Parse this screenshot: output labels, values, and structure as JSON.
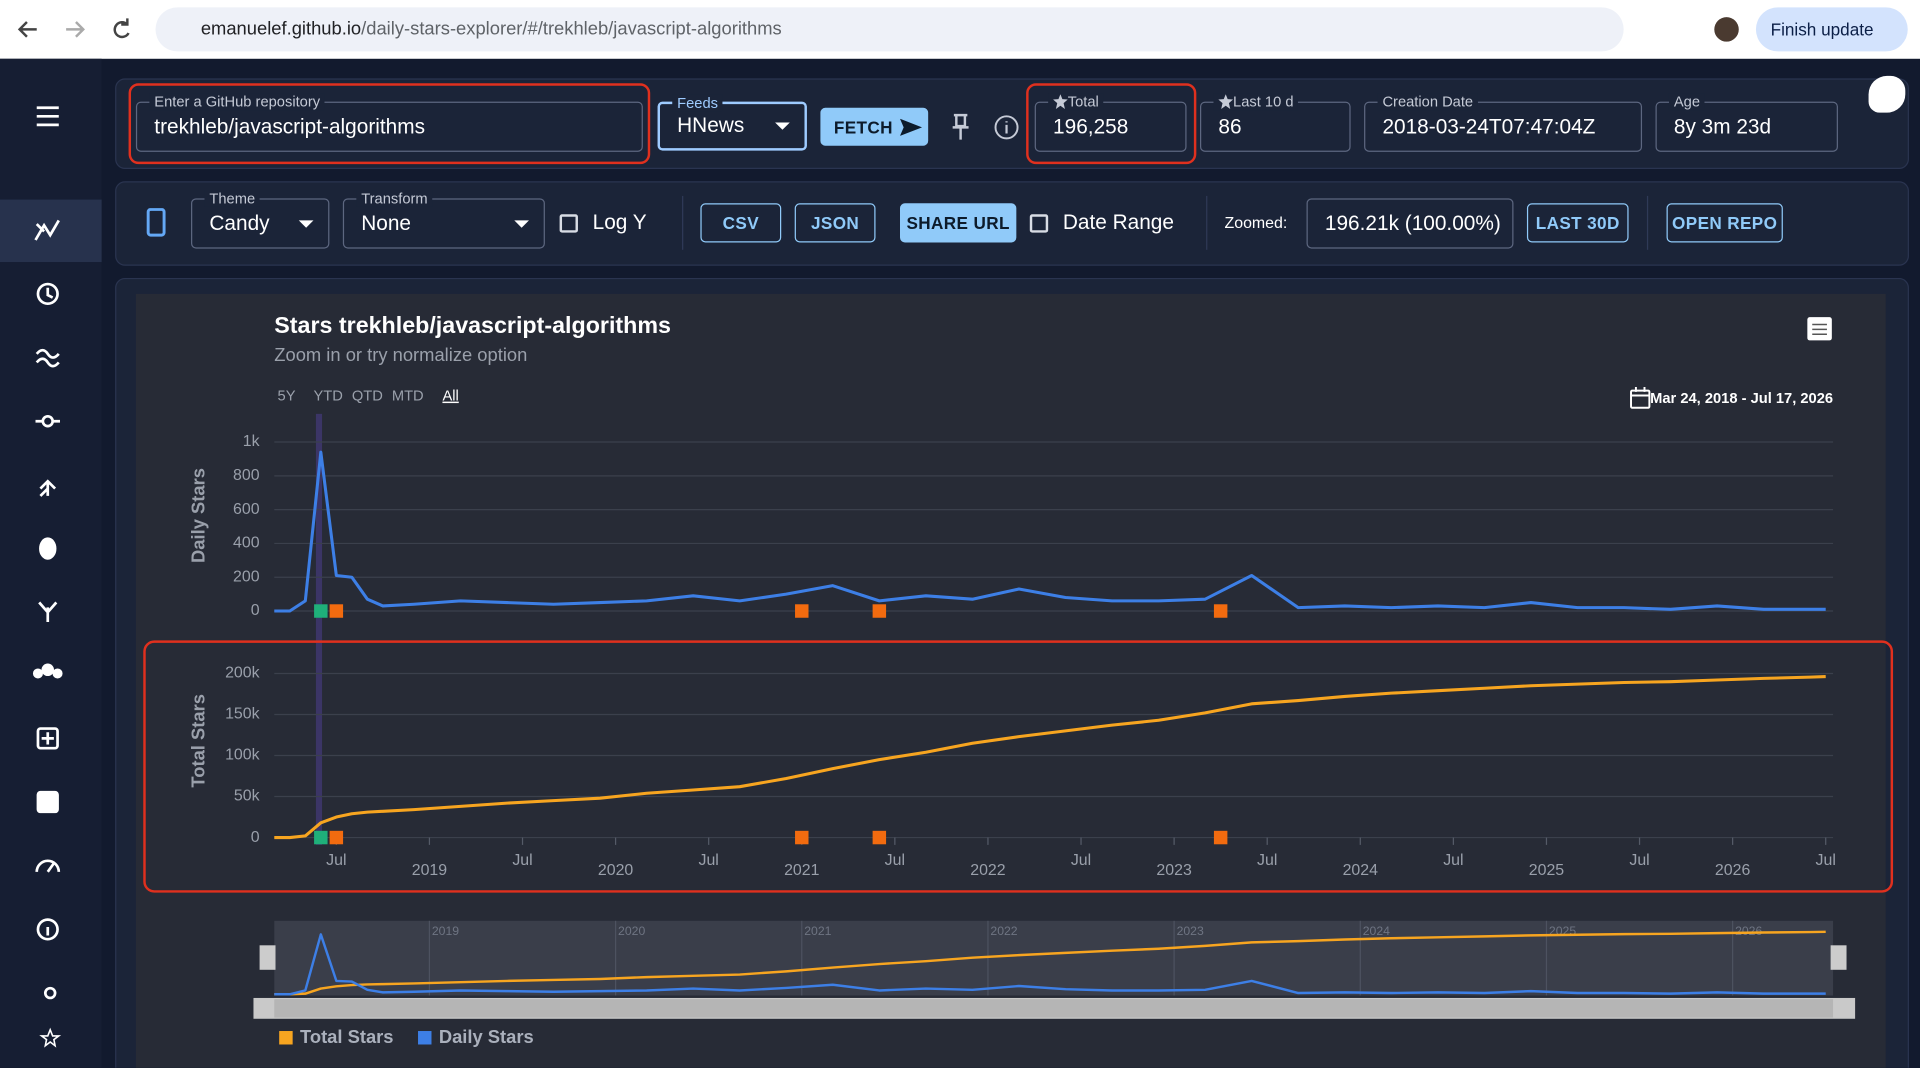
{
  "browser": {
    "url_host": "emanuelef.github.io",
    "url_path": "/daily-stars-explorer/#/trekhleb/javascript-algorithms",
    "update_button": "Finish update"
  },
  "toolbar": {
    "repo": {
      "label": "Enter a GitHub repository",
      "value": "trekhleb/javascript-algorithms"
    },
    "feeds": {
      "label": "Feeds",
      "value": "HNews"
    },
    "fetch": "FETCH",
    "total": {
      "label": "Total",
      "value": "196,258"
    },
    "last_10d": {
      "label": "Last 10 d",
      "value": "86"
    },
    "creation_date": {
      "label": "Creation Date",
      "value": "2018-03-24T07:47:04Z"
    },
    "age": {
      "label": "Age",
      "value": "8y 3m 23d"
    }
  },
  "controls": {
    "theme": {
      "label": "Theme",
      "value": "Candy"
    },
    "transform": {
      "label": "Transform",
      "value": "None"
    },
    "log_y": "Log Y",
    "csv": "CSV",
    "json": "JSON",
    "share_url": "SHARE URL",
    "date_range": "Date Range",
    "zoomed": {
      "label": "Zoomed:",
      "value": "196.21k (100.00%)"
    },
    "last_30d": "LAST 30D",
    "open_repo": "OPEN REPO"
  },
  "chart_data": {
    "type": "line",
    "title": "Stars trekhleb/javascript-algorithms",
    "subtitle": "Zoom in or try normalize option",
    "range_buttons": [
      "5Y",
      "YTD",
      "QTD",
      "MTD",
      "All"
    ],
    "date_range": "Mar 24, 2018 - Jul 17, 2026",
    "x": [
      "2018-03",
      "2018-04",
      "2018-05",
      "2018-06",
      "2018-07",
      "2018-08",
      "2018-09",
      "2018-10",
      "2018-12",
      "2019-03",
      "2019-06",
      "2019-09",
      "2019-12",
      "2020-03",
      "2020-06",
      "2020-09",
      "2020-12",
      "2021-03",
      "2021-06",
      "2021-09",
      "2021-12",
      "2022-03",
      "2022-06",
      "2022-09",
      "2022-12",
      "2023-03",
      "2023-06",
      "2023-09",
      "2023-12",
      "2024-03",
      "2024-06",
      "2024-09",
      "2024-12",
      "2025-03",
      "2025-06",
      "2025-09",
      "2025-12",
      "2026-03",
      "2026-06",
      "2026-07"
    ],
    "xlim": [
      "2018-03",
      "2026-07"
    ],
    "xticks": [
      {
        "value": "2018-07",
        "label": "Jul"
      },
      {
        "value": "2019-01",
        "label": "2019"
      },
      {
        "value": "2019-07",
        "label": "Jul"
      },
      {
        "value": "2020-01",
        "label": "2020"
      },
      {
        "value": "2020-07",
        "label": "Jul"
      },
      {
        "value": "2021-01",
        "label": "2021"
      },
      {
        "value": "2021-07",
        "label": "Jul"
      },
      {
        "value": "2022-01",
        "label": "2022"
      },
      {
        "value": "2022-07",
        "label": "Jul"
      },
      {
        "value": "2023-01",
        "label": "2023"
      },
      {
        "value": "2023-07",
        "label": "Jul"
      },
      {
        "value": "2024-01",
        "label": "2024"
      },
      {
        "value": "2024-07",
        "label": "Jul"
      },
      {
        "value": "2025-01",
        "label": "2025"
      },
      {
        "value": "2025-07",
        "label": "Jul"
      },
      {
        "value": "2026-01",
        "label": "2026"
      },
      {
        "value": "2026-07",
        "label": "Jul"
      }
    ],
    "y_label": "Daily Stars",
    "ylim": [
      0,
      1000
    ],
    "yticks": [
      0,
      200,
      400,
      600,
      800,
      {
        "value": 1000,
        "label": "1k"
      }
    ],
    "y2_label": "Total Stars",
    "y2lim": [
      0,
      200000
    ],
    "y2ticks": [
      0,
      {
        "value": 50000,
        "label": "50k"
      },
      {
        "value": 100000,
        "label": "100k"
      },
      {
        "value": 150000,
        "label": "150k"
      },
      {
        "value": 200000,
        "label": "200k"
      }
    ],
    "grid": true,
    "series": [
      {
        "name": "Total Stars",
        "color": "#f7a520",
        "axis": "y2",
        "values": [
          0,
          0,
          2000,
          18000,
          25000,
          29000,
          31000,
          32000,
          34000,
          38000,
          42000,
          45000,
          48000,
          54000,
          58000,
          62000,
          72000,
          84000,
          95000,
          104000,
          115000,
          123000,
          130000,
          137000,
          143000,
          152000,
          163000,
          167000,
          172000,
          176000,
          179000,
          182000,
          185000,
          187000,
          189000,
          190000,
          192000,
          194000,
          195500,
          196258
        ]
      },
      {
        "name": "Daily Stars",
        "color": "#3d7fe6",
        "values": [
          0,
          0,
          60,
          940,
          210,
          200,
          70,
          30,
          40,
          60,
          50,
          40,
          50,
          60,
          90,
          60,
          100,
          150,
          60,
          90,
          70,
          130,
          80,
          60,
          60,
          70,
          210,
          20,
          30,
          20,
          30,
          20,
          50,
          20,
          20,
          10,
          30,
          10,
          10,
          10
        ]
      }
    ],
    "events": {
      "x": [
        "2018-06",
        "2018-07",
        "2021-01",
        "2021-06",
        "2023-04"
      ],
      "colors": [
        "#1fb07a",
        "#f26b0f",
        "#f26b0f",
        "#f26b0f",
        "#f26b0f"
      ]
    }
  }
}
